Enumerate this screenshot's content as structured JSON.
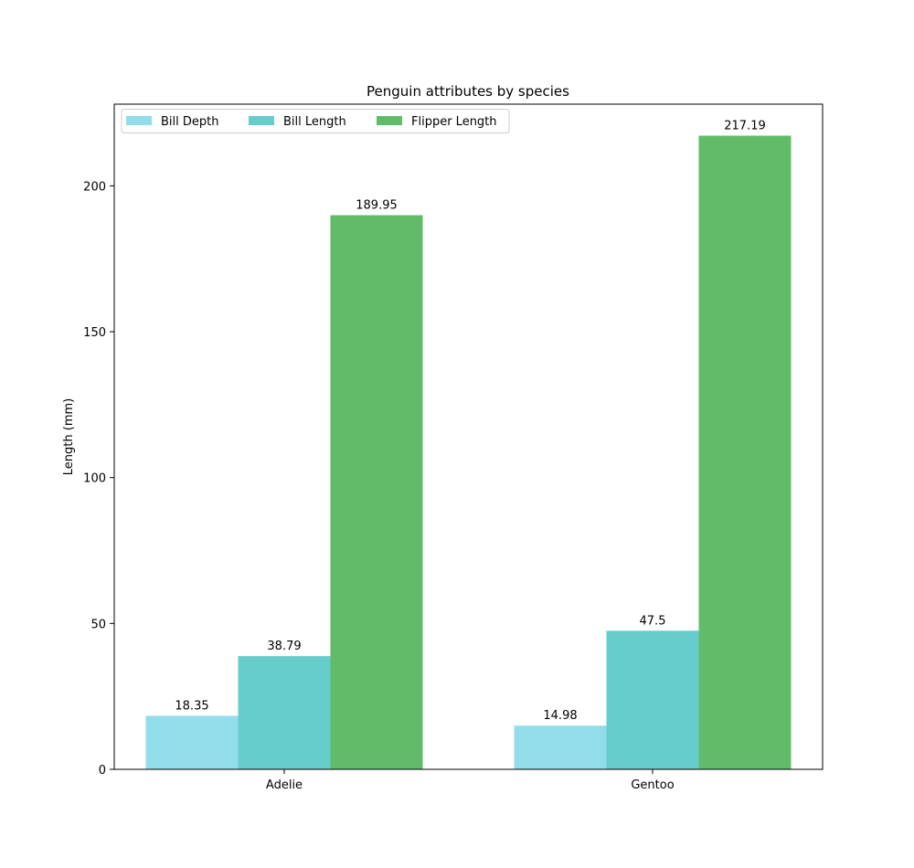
{
  "chart_data": {
    "type": "bar",
    "title": "Penguin attributes by species",
    "xlabel": "",
    "ylabel": "Length (mm)",
    "categories": [
      "Adelie",
      "Gentoo"
    ],
    "series": [
      {
        "name": "Bill Depth",
        "color": "#93DCEA",
        "values": [
          18.35,
          14.98
        ],
        "labels": [
          "18.35",
          "14.98"
        ]
      },
      {
        "name": "Bill Length",
        "color": "#66CDCB",
        "values": [
          38.79,
          47.5
        ],
        "labels": [
          "38.79",
          "47.5"
        ]
      },
      {
        "name": "Flipper Length",
        "color": "#61BC6A",
        "values": [
          189.95,
          217.19
        ],
        "labels": [
          "189.95",
          "217.19"
        ]
      }
    ],
    "ylim": [
      0,
      228
    ],
    "yticks": [
      0,
      50,
      100,
      150,
      200
    ],
    "ytick_labels": [
      "0",
      "50",
      "100",
      "150",
      "200"
    ],
    "grid": false,
    "legend": {
      "position": "upper left",
      "ncols": 3
    }
  }
}
